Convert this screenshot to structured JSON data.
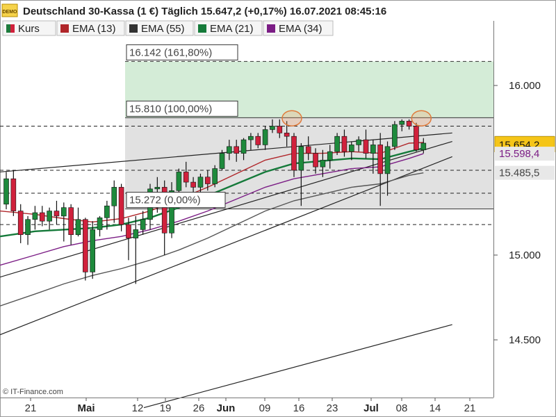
{
  "header": {
    "badge": "DEMO",
    "title": "Deutschland 30-Kassa (1 €) Täglich 15.647,2 (+0,17%) 16.07.2021 08:45:16"
  },
  "legend": [
    {
      "label": "Kurs",
      "color": "#1e7a3c",
      "color2": "#d0213c"
    },
    {
      "label": "EMA (13)",
      "color": "#b0262a"
    },
    {
      "label": "EMA (55)",
      "color": "#333333"
    },
    {
      "label": "EMA (21)",
      "color": "#157a3a"
    },
    {
      "label": "EMA (34)",
      "color": "#7b1d85"
    }
  ],
  "copyright": "© IT-Finance.com",
  "colors": {
    "up": "#1e8a3c",
    "down": "#d0213c",
    "fib_zone": "#e1e1e1",
    "fib_ext_zone": "#d4ecd7",
    "price_badge": "#f5c518"
  },
  "chart_data": {
    "type": "candlestick",
    "y_axis": {
      "ticks": [
        {
          "value": 16000,
          "label": "16.000"
        },
        {
          "value": 15000,
          "label": "15.000"
        },
        {
          "value": 14500,
          "label": "14.500"
        }
      ],
      "range": [
        14100,
        16390
      ],
      "side": "right"
    },
    "x_axis": {
      "ticks": [
        {
          "label": "21",
          "bold": false
        },
        {
          "label": "Mai",
          "bold": true
        },
        {
          "label": "12",
          "bold": false
        },
        {
          "label": "19",
          "bold": false
        },
        {
          "label": "26",
          "bold": false
        },
        {
          "label": "Jun",
          "bold": true
        },
        {
          "label": "09",
          "bold": false
        },
        {
          "label": "16",
          "bold": false
        },
        {
          "label": "23",
          "bold": false
        },
        {
          "label": "Jul",
          "bold": true
        },
        {
          "label": "08",
          "bold": false
        },
        {
          "label": "14",
          "bold": false
        },
        {
          "label": "21",
          "bold": false
        }
      ]
    },
    "fib_levels": [
      {
        "label": "16.142 (161,80%)",
        "value": 16142
      },
      {
        "label": "15.810 (100,00%)",
        "value": 15810
      },
      {
        "label": "15.272 (0,00%)",
        "value": 15272
      }
    ],
    "price_labels": [
      {
        "label": "15.664,1",
        "value": 15664,
        "color": "#b0262a"
      },
      {
        "label": "15.654,2",
        "value": 15654,
        "color": "#f5c518"
      },
      {
        "label": "15.598,4",
        "value": 15598,
        "color": "#7b1d85"
      },
      {
        "label": "15.485,5",
        "value": 15485,
        "color": "#444444"
      }
    ],
    "dashed_levels": [
      15760,
      15500,
      15365,
      15180
    ],
    "candles": [
      [
        15300,
        15490,
        15270,
        15450
      ],
      [
        15450,
        15500,
        15230,
        15260
      ],
      [
        15260,
        15300,
        15070,
        15120
      ],
      [
        15120,
        15230,
        15060,
        15210
      ],
      [
        15210,
        15290,
        15150,
        15250
      ],
      [
        15250,
        15290,
        15170,
        15200
      ],
      [
        15200,
        15280,
        15150,
        15260
      ],
      [
        15260,
        15320,
        15180,
        15230
      ],
      [
        15230,
        15310,
        15080,
        15280
      ],
      [
        15280,
        15300,
        15060,
        15120
      ],
      [
        15120,
        15280,
        15110,
        15210
      ],
      [
        15210,
        15220,
        14850,
        14900
      ],
      [
        14900,
        15200,
        14860,
        15150
      ],
      [
        15150,
        15230,
        15110,
        15220
      ],
      [
        15220,
        15320,
        15150,
        15290
      ],
      [
        15290,
        15440,
        15190,
        15400
      ],
      [
        15400,
        15420,
        15140,
        15180
      ],
      [
        15180,
        15220,
        14970,
        15100
      ],
      [
        15100,
        15230,
        14830,
        15150
      ],
      [
        15150,
        15260,
        15120,
        15210
      ],
      [
        15210,
        15420,
        15150,
        15390
      ],
      [
        15390,
        15460,
        15250,
        15400
      ],
      [
        15400,
        15440,
        15000,
        15130
      ],
      [
        15130,
        15430,
        15100,
        15380
      ],
      [
        15380,
        15510,
        15370,
        15490
      ],
      [
        15490,
        15550,
        15400,
        15430
      ],
      [
        15430,
        15460,
        15360,
        15400
      ],
      [
        15400,
        15480,
        15340,
        15460
      ],
      [
        15460,
        15500,
        15380,
        15420
      ],
      [
        15420,
        15530,
        15400,
        15510
      ],
      [
        15510,
        15620,
        15500,
        15600
      ],
      [
        15600,
        15680,
        15560,
        15640
      ],
      [
        15640,
        15680,
        15550,
        15600
      ],
      [
        15600,
        15690,
        15560,
        15680
      ],
      [
        15680,
        15720,
        15620,
        15700
      ],
      [
        15700,
        15720,
        15630,
        15650
      ],
      [
        15650,
        15760,
        15620,
        15740
      ],
      [
        15740,
        15800,
        15720,
        15760
      ],
      [
        15760,
        15800,
        15690,
        15720
      ],
      [
        15720,
        15790,
        15640,
        15700
      ],
      [
        15700,
        15720,
        15460,
        15500
      ],
      [
        15500,
        15660,
        15290,
        15640
      ],
      [
        15640,
        15700,
        15560,
        15600
      ],
      [
        15600,
        15630,
        15480,
        15520
      ],
      [
        15520,
        15620,
        15460,
        15560
      ],
      [
        15560,
        15650,
        15510,
        15610
      ],
      [
        15610,
        15720,
        15590,
        15700
      ],
      [
        15700,
        15740,
        15580,
        15610
      ],
      [
        15610,
        15670,
        15560,
        15650
      ],
      [
        15650,
        15700,
        15610,
        15680
      ],
      [
        15680,
        15740,
        15570,
        15600
      ],
      [
        15600,
        15680,
        15480,
        15650
      ],
      [
        15650,
        15720,
        15290,
        15480
      ],
      [
        15480,
        15670,
        15350,
        15640
      ],
      [
        15640,
        15790,
        15620,
        15770
      ],
      [
        15770,
        15800,
        15730,
        15790
      ],
      [
        15790,
        15800,
        15740,
        15760
      ],
      [
        15760,
        15780,
        15610,
        15620
      ],
      [
        15620,
        15690,
        15600,
        15660
      ]
    ],
    "ema": [
      {
        "name": "EMA (13)",
        "color": "#b0262a",
        "width": 1.4,
        "pts": [
          [
            0,
            15260
          ],
          [
            4,
            15240
          ],
          [
            8,
            15215
          ],
          [
            12,
            15195
          ],
          [
            16,
            15215
          ],
          [
            20,
            15260
          ],
          [
            24,
            15330
          ],
          [
            28,
            15400
          ],
          [
            32,
            15480
          ],
          [
            36,
            15560
          ],
          [
            40,
            15600
          ],
          [
            44,
            15600
          ],
          [
            48,
            15610
          ],
          [
            52,
            15600
          ],
          [
            56,
            15660
          ],
          [
            58,
            15664
          ]
        ]
      },
      {
        "name": "EMA (21)",
        "color": "#157a3a",
        "width": 2.4,
        "pts": [
          [
            0,
            15110
          ],
          [
            4,
            15140
          ],
          [
            8,
            15150
          ],
          [
            12,
            15160
          ],
          [
            16,
            15180
          ],
          [
            20,
            15220
          ],
          [
            24,
            15280
          ],
          [
            28,
            15350
          ],
          [
            32,
            15420
          ],
          [
            36,
            15490
          ],
          [
            40,
            15540
          ],
          [
            44,
            15555
          ],
          [
            48,
            15570
          ],
          [
            52,
            15565
          ],
          [
            56,
            15610
          ],
          [
            58,
            15630
          ]
        ]
      },
      {
        "name": "EMA (34)",
        "color": "#7b1d85",
        "width": 1.4,
        "pts": [
          [
            0,
            14940
          ],
          [
            4,
            15000
          ],
          [
            8,
            15050
          ],
          [
            12,
            15085
          ],
          [
            16,
            15110
          ],
          [
            20,
            15150
          ],
          [
            24,
            15200
          ],
          [
            28,
            15260
          ],
          [
            32,
            15330
          ],
          [
            36,
            15400
          ],
          [
            40,
            15450
          ],
          [
            44,
            15480
          ],
          [
            48,
            15510
          ],
          [
            52,
            15520
          ],
          [
            56,
            15570
          ],
          [
            58,
            15598
          ]
        ]
      },
      {
        "name": "EMA (55)",
        "color": "#555555",
        "width": 1.4,
        "pts": [
          [
            0,
            14700
          ],
          [
            4,
            14770
          ],
          [
            8,
            14830
          ],
          [
            12,
            14880
          ],
          [
            16,
            14920
          ],
          [
            20,
            14970
          ],
          [
            24,
            15030
          ],
          [
            28,
            15100
          ],
          [
            32,
            15180
          ],
          [
            36,
            15260
          ],
          [
            40,
            15320
          ],
          [
            44,
            15360
          ],
          [
            48,
            15400
          ],
          [
            52,
            15420
          ],
          [
            56,
            15470
          ],
          [
            58,
            15485
          ]
        ]
      }
    ],
    "trendlines": [
      {
        "from": [
          0,
          15490
        ],
        "to": [
          62,
          15720
        ]
      },
      {
        "from": [
          0,
          14870
        ],
        "to": [
          62,
          15670
        ]
      },
      {
        "from": [
          0,
          14530
        ],
        "to": [
          62,
          15580
        ]
      },
      {
        "from": [
          20,
          14100
        ],
        "to": [
          62,
          14590
        ]
      }
    ]
  }
}
